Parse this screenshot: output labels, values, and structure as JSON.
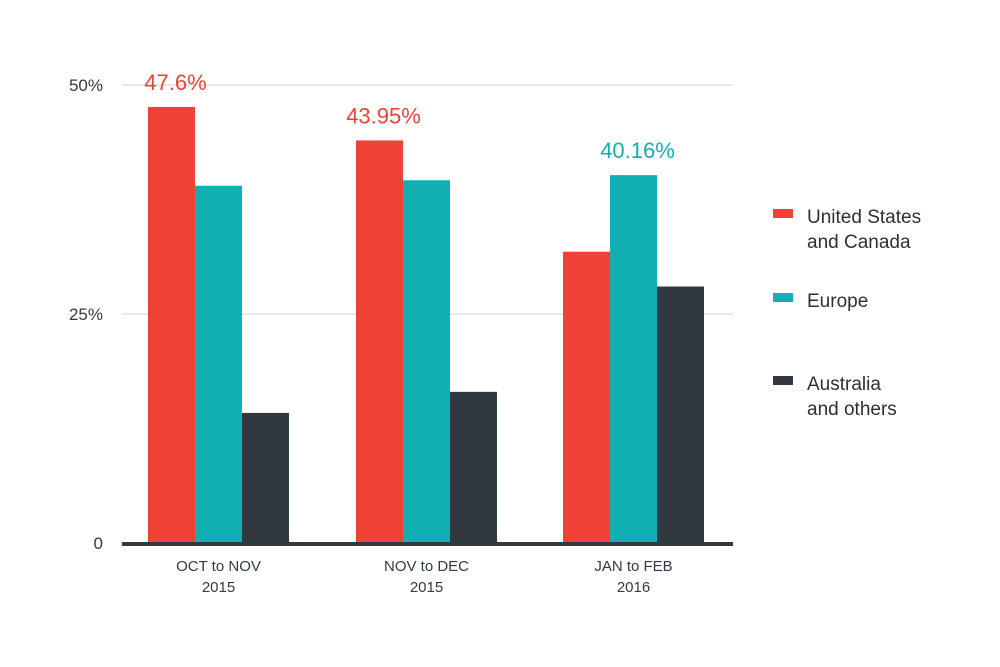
{
  "chart_data": {
    "type": "bar",
    "categories": [
      [
        "OCT to NOV",
        "2015"
      ],
      [
        "NOV to DEC",
        "2015"
      ],
      [
        "JAN to FEB",
        "2016"
      ]
    ],
    "y_ticks": [
      {
        "value": 0,
        "label": "0"
      },
      {
        "value": 25,
        "label": "25%"
      },
      {
        "value": 50,
        "label": "50%"
      }
    ],
    "ylim": [
      0,
      50
    ],
    "grid": true,
    "series": [
      {
        "name": [
          "United States",
          "and Canada"
        ],
        "color": "#ef4136",
        "values": [
          47.6,
          43.95,
          31.8
        ]
      },
      {
        "name": [
          "Europe"
        ],
        "color": "#12b0b3",
        "values": [
          39.0,
          39.6,
          40.16
        ]
      },
      {
        "name": [
          "Australia",
          "and others"
        ],
        "color": "#32383f",
        "values": [
          14.2,
          16.5,
          28.0
        ]
      }
    ],
    "data_labels": [
      {
        "category": 0,
        "series": 0,
        "text": "47.6%",
        "color": "#ef4136"
      },
      {
        "category": 1,
        "series": 0,
        "text": "43.95%",
        "color": "#ef4136"
      },
      {
        "category": 2,
        "series": 1,
        "text": "40.16%",
        "color": "#12b0b3"
      }
    ],
    "legend_position": "right"
  }
}
